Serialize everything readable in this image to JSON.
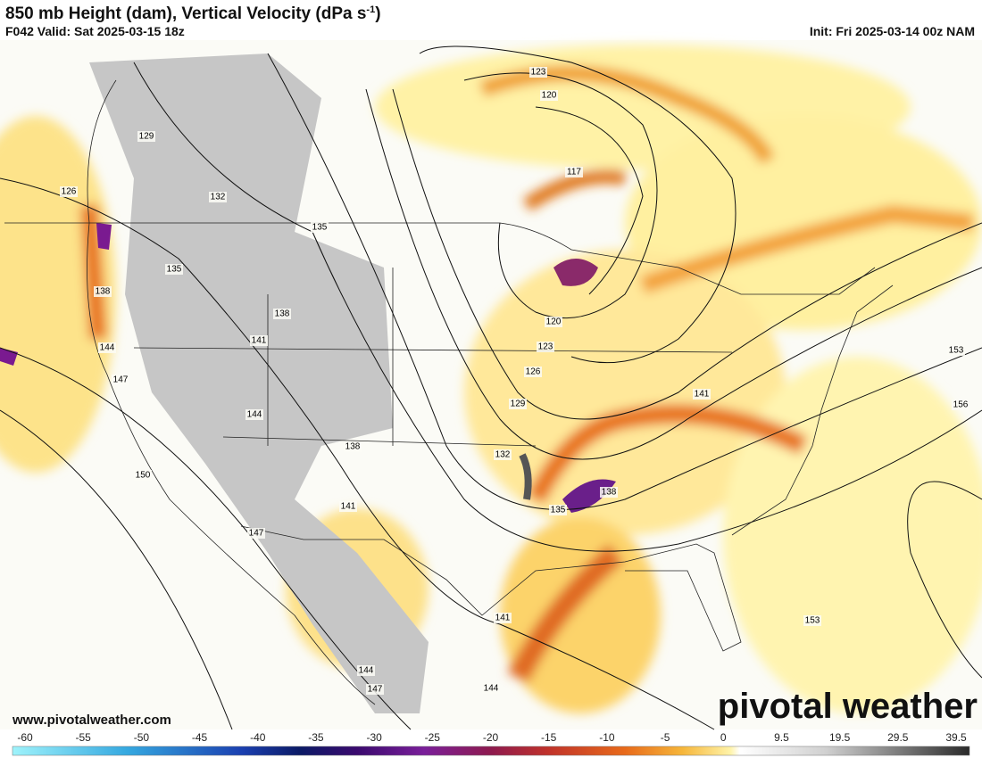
{
  "header": {
    "title": "850 mb Height (dam), Vertical Velocity (dPa s",
    "title_sup": "-1",
    "title_end": ")",
    "valid": "F042 Valid: Sat 2025-03-15 18z",
    "init": "Init: Fri 2025-03-14 00z NAM"
  },
  "map": {
    "contour_labels": [
      "123",
      "120",
      "117",
      "129",
      "126",
      "132",
      "135",
      "135",
      "138",
      "138",
      "141",
      "144",
      "147",
      "144",
      "138",
      "141",
      "147",
      "150",
      "120",
      "123",
      "126",
      "129",
      "132",
      "135",
      "138",
      "141",
      "153",
      "156",
      "141",
      "144",
      "144",
      "147",
      "153"
    ],
    "website": "www.pivotalweather.com",
    "watermark": "pivotal weather"
  },
  "colorbar": {
    "ticks": [
      -60,
      -55,
      -50,
      -45,
      -40,
      -35,
      -30,
      -25,
      -20,
      -15,
      -10,
      -5,
      0,
      9.5,
      19.5,
      29.5,
      39.5
    ]
  }
}
